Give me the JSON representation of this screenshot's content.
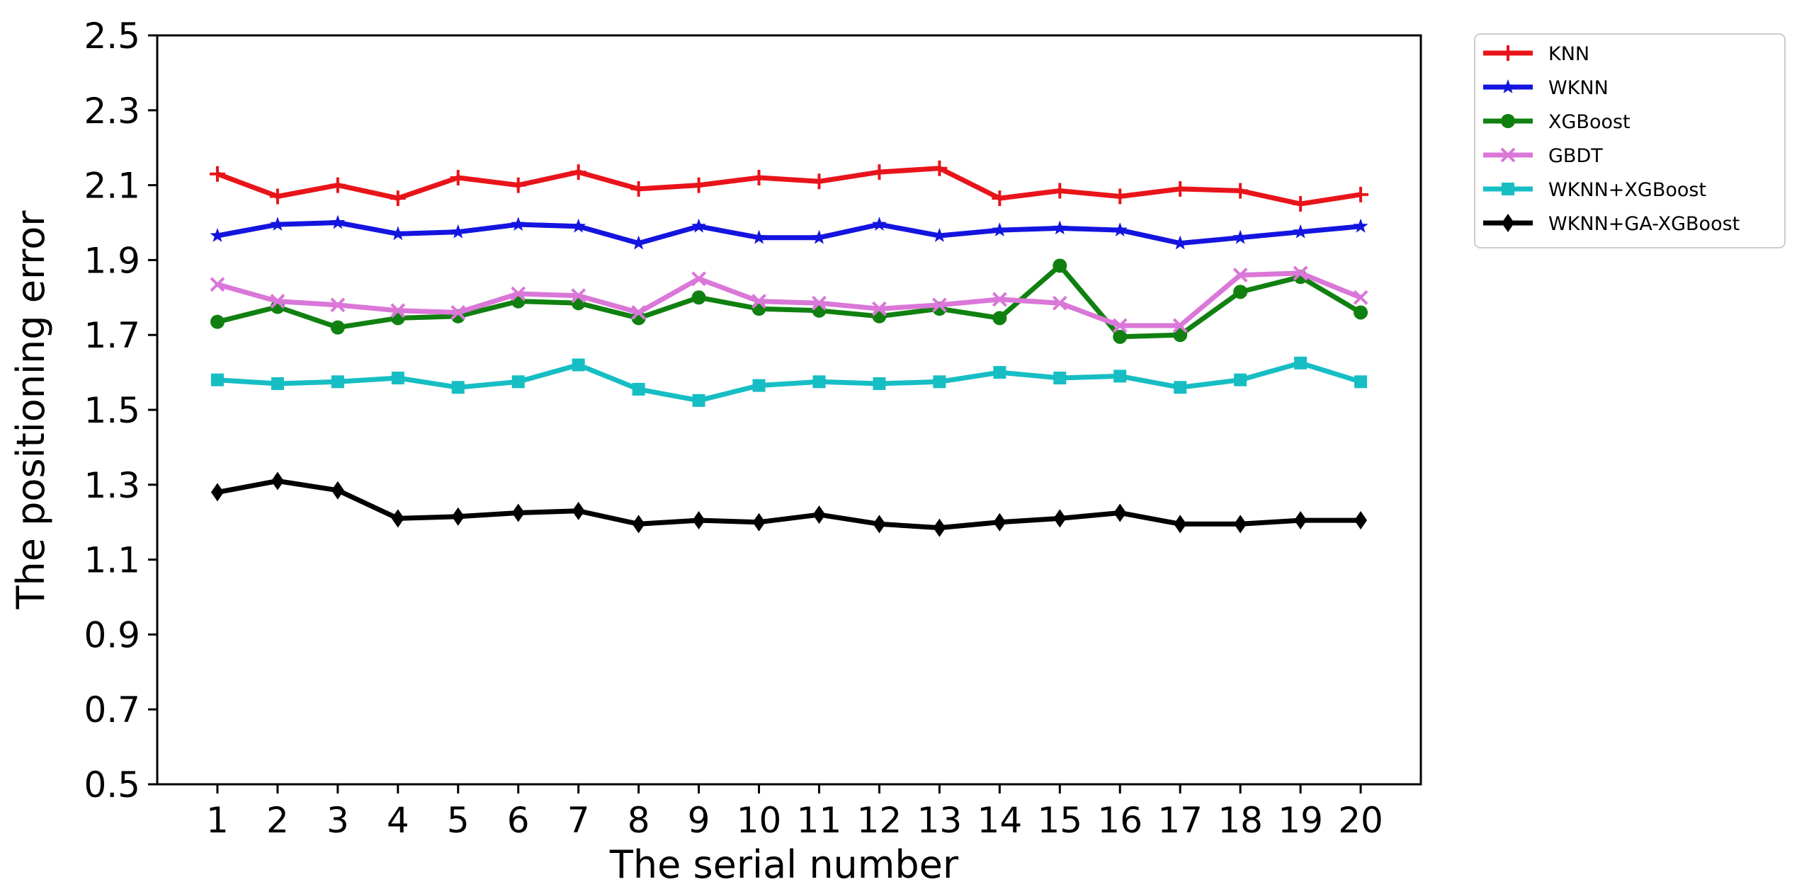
{
  "chart_data": {
    "type": "line",
    "title": "",
    "xlabel": "The serial number",
    "ylabel": "The positioning error",
    "x": [
      1,
      2,
      3,
      4,
      5,
      6,
      7,
      8,
      9,
      10,
      11,
      12,
      13,
      14,
      15,
      16,
      17,
      18,
      19,
      20
    ],
    "x_ticks": [
      "1",
      "2",
      "3",
      "4",
      "5",
      "6",
      "7",
      "8",
      "9",
      "10",
      "11",
      "12",
      "13",
      "14",
      "15",
      "16",
      "17",
      "18",
      "19",
      "20"
    ],
    "xlim": [
      0,
      21
    ],
    "ylim": [
      0.5,
      2.5
    ],
    "y_ticks": [
      "0.5",
      "0.7",
      "0.9",
      "1.1",
      "1.3",
      "1.5",
      "1.7",
      "1.9",
      "2.1",
      "2.3",
      "2.5"
    ],
    "grid": false,
    "legend_position": "outside-top-right",
    "series": [
      {
        "name": "KNN",
        "color": "#e8141a",
        "marker": "plus",
        "values": [
          2.13,
          2.07,
          2.1,
          2.065,
          2.12,
          2.1,
          2.135,
          2.09,
          2.1,
          2.12,
          2.11,
          2.135,
          2.145,
          2.065,
          2.085,
          2.07,
          2.09,
          2.085,
          2.05,
          2.075
        ]
      },
      {
        "name": "WKNN",
        "color": "#1414e0",
        "marker": "star",
        "values": [
          1.965,
          1.995,
          2.0,
          1.97,
          1.975,
          1.995,
          1.99,
          1.945,
          1.99,
          1.96,
          1.96,
          1.995,
          1.965,
          1.98,
          1.985,
          1.98,
          1.945,
          1.96,
          1.975,
          1.99
        ]
      },
      {
        "name": "XGBoost",
        "color": "#108010",
        "marker": "circle",
        "values": [
          1.735,
          1.775,
          1.72,
          1.745,
          1.75,
          1.79,
          1.785,
          1.745,
          1.8,
          1.77,
          1.765,
          1.75,
          1.77,
          1.745,
          1.885,
          1.695,
          1.7,
          1.815,
          1.855,
          1.76
        ]
      },
      {
        "name": "GBDT",
        "color": "#da77d8",
        "marker": "x",
        "values": [
          1.835,
          1.79,
          1.78,
          1.765,
          1.76,
          1.81,
          1.805,
          1.76,
          1.85,
          1.79,
          1.785,
          1.77,
          1.78,
          1.795,
          1.785,
          1.725,
          1.725,
          1.86,
          1.865,
          1.8
        ]
      },
      {
        "name": "WKNN+XGBoost",
        "color": "#16bec4",
        "marker": "square",
        "values": [
          1.58,
          1.57,
          1.575,
          1.585,
          1.56,
          1.575,
          1.62,
          1.555,
          1.525,
          1.565,
          1.575,
          1.57,
          1.575,
          1.6,
          1.585,
          1.59,
          1.56,
          1.58,
          1.625,
          1.575
        ]
      },
      {
        "name": "WKNN+GA-XGBoost",
        "color": "#000000",
        "marker": "diamond",
        "values": [
          1.28,
          1.31,
          1.285,
          1.21,
          1.215,
          1.225,
          1.23,
          1.195,
          1.205,
          1.2,
          1.22,
          1.195,
          1.185,
          1.2,
          1.21,
          1.225,
          1.195,
          1.195,
          1.205,
          1.205
        ]
      }
    ]
  }
}
